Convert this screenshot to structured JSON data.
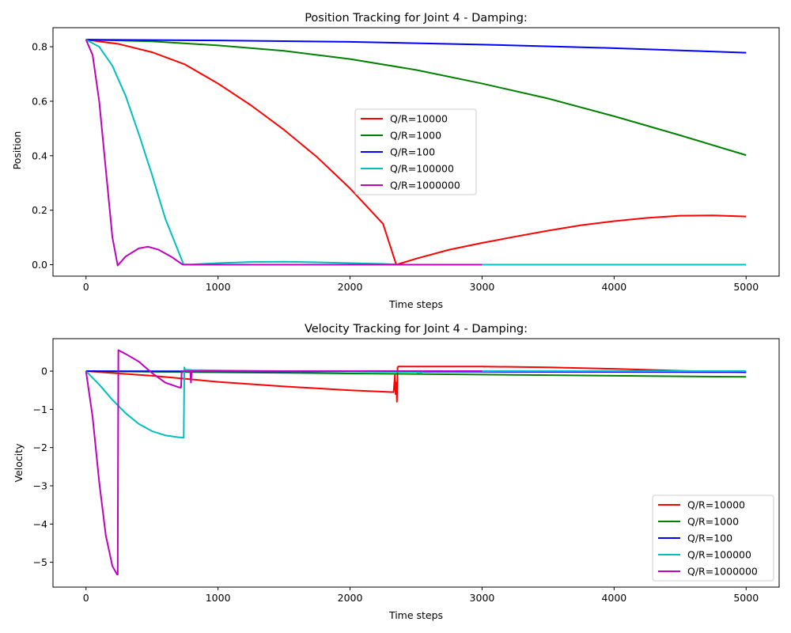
{
  "chart_data": [
    {
      "type": "line",
      "title": "Position Tracking for Joint 4 - Damping:",
      "xlabel": "Time steps",
      "ylabel": "Position",
      "xlim": [
        -250,
        5250
      ],
      "ylim": [
        -0.042,
        0.87
      ],
      "xticks": [
        0,
        1000,
        2000,
        3000,
        4000,
        5000
      ],
      "yticks": [
        0.0,
        0.2,
        0.4,
        0.6,
        0.8
      ],
      "ytick_labels": [
        "0.0",
        "0.2",
        "0.4",
        "0.6",
        "0.8"
      ],
      "grid": false,
      "legend": "center-right",
      "series": [
        {
          "name": "Q/R=10000",
          "color": "#ff0000",
          "x": [
            0,
            250,
            500,
            750,
            1000,
            1250,
            1500,
            1750,
            2000,
            2250,
            2350,
            2500,
            2750,
            3000,
            3250,
            3500,
            3750,
            4000,
            4250,
            4500,
            4750,
            5000
          ],
          "y": [
            0.826,
            0.81,
            0.78,
            0.735,
            0.665,
            0.585,
            0.495,
            0.395,
            0.28,
            0.15,
            0.0,
            0.022,
            0.055,
            0.08,
            0.103,
            0.125,
            0.145,
            0.16,
            0.172,
            0.18,
            0.181,
            0.177
          ]
        },
        {
          "name": "Q/R=1000",
          "color": "#008000",
          "x": [
            0,
            500,
            1000,
            1500,
            2000,
            2500,
            3000,
            3500,
            4000,
            4500,
            5000
          ],
          "y": [
            0.826,
            0.82,
            0.805,
            0.785,
            0.755,
            0.715,
            0.665,
            0.61,
            0.545,
            0.475,
            0.402
          ]
        },
        {
          "name": "Q/R=100",
          "color": "#0000ff",
          "x": [
            0,
            1000,
            2000,
            3000,
            4000,
            5000
          ],
          "y": [
            0.826,
            0.823,
            0.818,
            0.808,
            0.795,
            0.778
          ]
        },
        {
          "name": "Q/R=100000",
          "color": "#00bfbf",
          "x": [
            0,
            100,
            200,
            300,
            400,
            500,
            600,
            740,
            800,
            1000,
            1250,
            1500,
            1750,
            2000,
            2250,
            2400,
            3000,
            4000,
            5000
          ],
          "y": [
            0.826,
            0.8,
            0.73,
            0.62,
            0.48,
            0.33,
            0.17,
            0.0,
            0.001,
            0.006,
            0.01,
            0.011,
            0.009,
            0.006,
            0.003,
            0.0,
            0.0,
            0.0,
            0.0
          ]
        },
        {
          "name": "Q/R=1000000",
          "color": "#bf00bf",
          "x": [
            0,
            50,
            100,
            150,
            200,
            240,
            300,
            400,
            470,
            550,
            650,
            730,
            800,
            1000,
            1500,
            2000,
            2500,
            3000
          ],
          "y": [
            0.826,
            0.77,
            0.6,
            0.35,
            0.1,
            -0.003,
            0.03,
            0.06,
            0.066,
            0.055,
            0.028,
            0.001,
            0.0,
            0.0,
            0.0,
            0.0,
            0.0,
            0.0
          ]
        }
      ]
    },
    {
      "type": "line",
      "title": "Velocity Tracking for Joint 4 - Damping:",
      "xlabel": "Time steps",
      "ylabel": "Velocity",
      "xlim": [
        -250,
        5250
      ],
      "ylim": [
        -5.65,
        0.85
      ],
      "xticks": [
        0,
        1000,
        2000,
        3000,
        4000,
        5000
      ],
      "yticks": [
        0,
        -1,
        -2,
        -3,
        -4,
        -5
      ],
      "ytick_labels": [
        "0",
        "−1",
        "−2",
        "−3",
        "−4",
        "−5"
      ],
      "grid": false,
      "legend": "lower-right",
      "series": [
        {
          "name": "Q/R=10000",
          "color": "#ff0000",
          "x": [
            0,
            500,
            1000,
            1500,
            2000,
            2330,
            2340,
            2345,
            2350,
            2355,
            2360,
            2365,
            2370,
            2500,
            3000,
            3500,
            4000,
            4500,
            5000
          ],
          "y": [
            0,
            -0.12,
            -0.28,
            -0.4,
            -0.5,
            -0.55,
            -0.1,
            -0.6,
            -0.3,
            -0.8,
            0.1,
            0.12,
            0.12,
            0.12,
            0.12,
            0.1,
            0.06,
            0.01,
            -0.03
          ]
        },
        {
          "name": "Q/R=1000",
          "color": "#008000",
          "x": [
            0,
            1000,
            2000,
            3000,
            4000,
            5000
          ],
          "y": [
            0,
            -0.03,
            -0.06,
            -0.09,
            -0.12,
            -0.15
          ]
        },
        {
          "name": "Q/R=100",
          "color": "#0000ff",
          "x": [
            0,
            1000,
            2000,
            3000,
            4000,
            5000
          ],
          "y": [
            0,
            -0.005,
            -0.01,
            -0.015,
            -0.02,
            -0.025
          ]
        },
        {
          "name": "Q/R=100000",
          "color": "#00bfbf",
          "x": [
            0,
            100,
            200,
            300,
            400,
            500,
            600,
            700,
            740,
            745,
            750,
            800,
            1000,
            1500,
            2000,
            2500,
            2540,
            2550,
            3000,
            4000,
            5000
          ],
          "y": [
            0,
            -0.35,
            -0.75,
            -1.1,
            -1.38,
            -1.57,
            -1.68,
            -1.73,
            -1.74,
            0.1,
            0.04,
            0.03,
            0.02,
            0.0,
            -0.01,
            -0.02,
            -0.05,
            0.0,
            0.0,
            0.0,
            0.0
          ]
        },
        {
          "name": "Q/R=1000000",
          "color": "#bf00bf",
          "x": [
            0,
            50,
            100,
            150,
            200,
            235,
            240,
            245,
            300,
            400,
            500,
            600,
            700,
            720,
            725,
            760,
            790,
            795,
            800,
            900,
            1500,
            2000,
            2500,
            3000
          ],
          "y": [
            0,
            -1.2,
            -2.9,
            -4.3,
            -5.1,
            -5.32,
            -5.32,
            0.55,
            0.45,
            0.25,
            -0.05,
            -0.3,
            -0.42,
            -0.43,
            0.0,
            0.0,
            0.0,
            -0.3,
            0.0,
            0.0,
            0.0,
            0.0,
            0.0,
            0.0
          ]
        }
      ]
    }
  ]
}
